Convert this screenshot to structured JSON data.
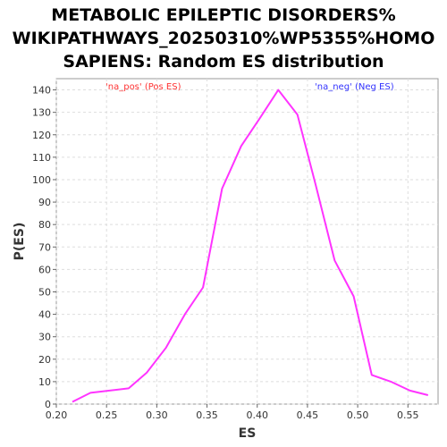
{
  "chart_data": {
    "type": "line",
    "title_lines": [
      "METABOLIC EPILEPTIC DISORDERS%",
      "WIKIPATHWAYS_20250310%WP5355%HOMO",
      "SAPIENS: Random ES distribution"
    ],
    "xlabel": "ES",
    "ylabel": "P(ES)",
    "xlim": [
      0.2,
      0.58
    ],
    "ylim": [
      0,
      145
    ],
    "x_ticks": [
      "0.20",
      "0.25",
      "0.30",
      "0.35",
      "0.40",
      "0.45",
      "0.50",
      "0.55"
    ],
    "x_tick_values": [
      0.2,
      0.25,
      0.3,
      0.35,
      0.4,
      0.45,
      0.5,
      0.55
    ],
    "y_ticks": [
      "0",
      "10",
      "20",
      "30",
      "40",
      "50",
      "60",
      "70",
      "80",
      "90",
      "100",
      "110",
      "120",
      "130",
      "140"
    ],
    "y_tick_values": [
      0,
      10,
      20,
      30,
      40,
      50,
      60,
      70,
      80,
      90,
      100,
      110,
      120,
      130,
      140
    ],
    "grid": true,
    "series": [
      {
        "color": "#ff33ff",
        "x": [
          0.216,
          0.234,
          0.253,
          0.272,
          0.29,
          0.309,
          0.328,
          0.346,
          0.365,
          0.384,
          0.402,
          0.421,
          0.44,
          0.458,
          0.477,
          0.496,
          0.514,
          0.533,
          0.552,
          0.57
        ],
        "y": [
          1,
          5,
          6,
          7,
          14,
          25,
          40,
          52,
          96,
          115,
          127,
          140,
          129,
          98,
          64,
          48,
          13,
          10,
          6,
          4
        ]
      }
    ],
    "annotations": {
      "pos_label": "'na_pos' (Pos ES)",
      "pos_color": "#ff3333",
      "neg_label": "'na_neg' (Neg ES)",
      "neg_color": "#3333ff"
    }
  }
}
